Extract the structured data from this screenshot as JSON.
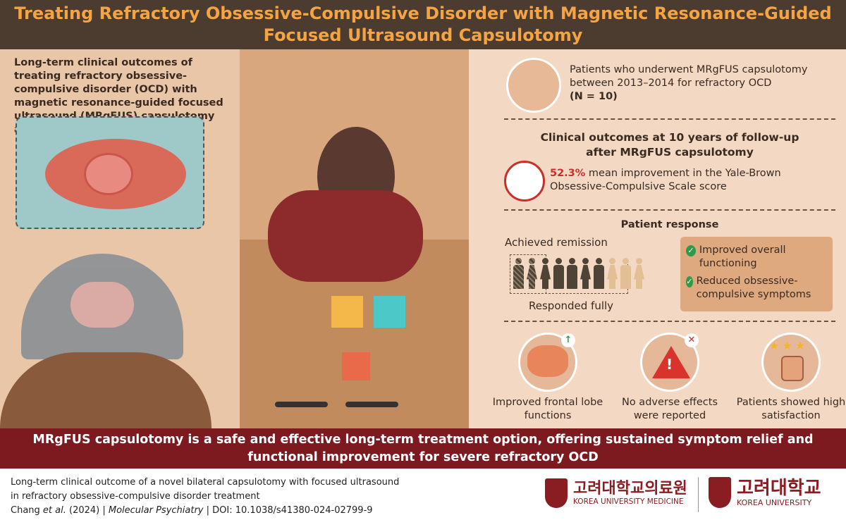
{
  "title": {
    "line1": "Treating Refractory Obsessive-Compulsive Disorder with Magnetic Resonance-Guided",
    "line2": "Focused Ultrasound Capsulotomy"
  },
  "left": {
    "intro": "Long-term clinical outcomes of treating refractory obsessive-compulsive disorder (OCD) with magnetic resonance-guided focused ultrasound (MRgFUS) capsulotomy are unclear"
  },
  "patients": {
    "line1": "Patients who underwent MRgFUS capsulotomy",
    "line2": "between 2013–2014 for refractory OCD",
    "n": "(N = 10)"
  },
  "outcomes": {
    "heading": "Clinical outcomes at 10 years of follow-up after MRgFUS capsulotomy",
    "percent": "52.3%",
    "text": " mean improvement in the Yale-Brown Obsessive-Compulsive Scale score",
    "accent": "#c8302c"
  },
  "response": {
    "heading": "Patient response",
    "remission_label": "Achieved remission",
    "responded_label": "Responded fully",
    "remission_count": 2,
    "responded_count": 7,
    "total": 10,
    "figures": [
      "male",
      "female",
      "female",
      "male",
      "male",
      "female",
      "male",
      "female",
      "male",
      "female"
    ],
    "benefits": [
      "Improved overall functioning",
      "Reduced obsessive-compulsive symptoms"
    ]
  },
  "results": [
    {
      "icon": "brain-up-arrow-icon",
      "label": "Improved frontal lobe functions"
    },
    {
      "icon": "warning-x-icon",
      "label": "No adverse effects were reported"
    },
    {
      "icon": "thumbs-up-stars-icon",
      "label": "Patients showed high satisfaction"
    }
  ],
  "banner": "MRgFUS capsulotomy is a safe and effective long-term treatment option, offering sustained symptom relief and functional improvement for severe refractory OCD",
  "citation": {
    "line1": "Long-term clinical outcome of a novel bilateral capsulotomy with focused ultrasound",
    "line2": "in refractory obsessive-compulsive disorder treatment",
    "authors": "Chang ",
    "etal": "et al.",
    "year": " (2024) | ",
    "journal": "Molecular Psychiatry",
    "doi": " | DOI: 10.1038/s41380-024-02799-9"
  },
  "logos": [
    {
      "korean": "고려대학교의료원",
      "english": "KOREA UNIVERSITY MEDICINE",
      "badge": "KU MEDICINE"
    },
    {
      "korean": "고려대학교",
      "english": "KOREA UNIVERSITY",
      "badge": "KOREA UNIVERSITY"
    }
  ],
  "colors": {
    "title_bg": "#4c3b2f",
    "title_text": "#f5a443",
    "banner": "#7d1a1f",
    "check": "#2f9a48"
  }
}
